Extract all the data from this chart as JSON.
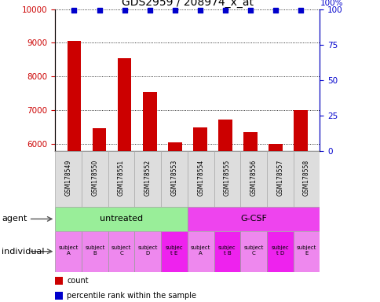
{
  "title": "GDS2959 / 208974_x_at",
  "samples": [
    "GSM178549",
    "GSM178550",
    "GSM178551",
    "GSM178552",
    "GSM178553",
    "GSM178554",
    "GSM178555",
    "GSM178556",
    "GSM178557",
    "GSM178558"
  ],
  "counts": [
    9050,
    6480,
    8550,
    7550,
    6060,
    6500,
    6720,
    6360,
    6020,
    7000
  ],
  "percentile_ranks": [
    99,
    99,
    99,
    99,
    99,
    99,
    99,
    99,
    99,
    99
  ],
  "ylim_left": [
    5800,
    10000
  ],
  "ylim_right": [
    0,
    100
  ],
  "yticks_left": [
    6000,
    7000,
    8000,
    9000,
    10000
  ],
  "yticks_right": [
    0,
    25,
    50,
    75,
    100
  ],
  "bar_color": "#cc0000",
  "dot_color": "#0000cc",
  "agent_groups": [
    {
      "label": "untreated",
      "start": 0,
      "end": 5,
      "color": "#99ee99"
    },
    {
      "label": "G-CSF",
      "start": 5,
      "end": 10,
      "color": "#ee44ee"
    }
  ],
  "individual_labels": [
    "subject\nA",
    "subject\nB",
    "subject\nC",
    "subject\nD",
    "subjec\nt E",
    "subject\nA",
    "subjec\nt B",
    "subject\nC",
    "subjec\nt D",
    "subject\nE"
  ],
  "individual_colors_base": "#ee88ee",
  "individual_colors_highlight": "#ee22ee",
  "individual_highlight": [
    4,
    6,
    8
  ],
  "agent_label": "agent",
  "individual_label": "individual",
  "legend_count_label": "count",
  "legend_percentile_label": "percentile rank within the sample",
  "sample_box_color": "#dddddd",
  "sample_box_edge": "#aaaaaa",
  "tick_label_fontsize": 7.5,
  "title_fontsize": 10,
  "bar_width": 0.55
}
